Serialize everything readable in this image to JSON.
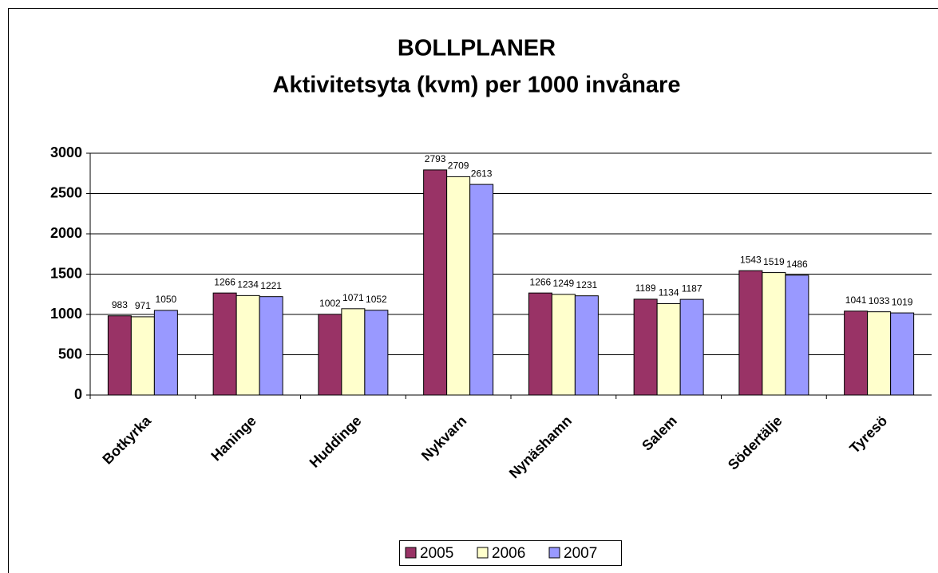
{
  "chart_data": {
    "type": "bar",
    "title": "BOLLPLANER",
    "subtitle": "Aktivitetsyta (kvm) per 1000 invånare",
    "categories": [
      "Botkyrka",
      "Haninge",
      "Huddinge",
      "Nykvarn",
      "Nynäshamn",
      "Salem",
      "Södertälje",
      "Tyresö"
    ],
    "series": [
      {
        "name": "2005",
        "color": "#993366",
        "values": [
          983,
          1266,
          1002,
          2793,
          1266,
          1189,
          1543,
          1041
        ]
      },
      {
        "name": "2006",
        "color": "#ffffcc",
        "values": [
          971,
          1234,
          1071,
          2709,
          1249,
          1134,
          1519,
          1033
        ]
      },
      {
        "name": "2007",
        "color": "#9999ff",
        "values": [
          1050,
          1221,
          1052,
          2613,
          1231,
          1187,
          1486,
          1019
        ]
      }
    ],
    "ylim": [
      0,
      3000
    ],
    "yticks": [
      0,
      500,
      1000,
      1500,
      2000,
      2500,
      3000
    ],
    "grid": true,
    "legend": "bottom"
  }
}
